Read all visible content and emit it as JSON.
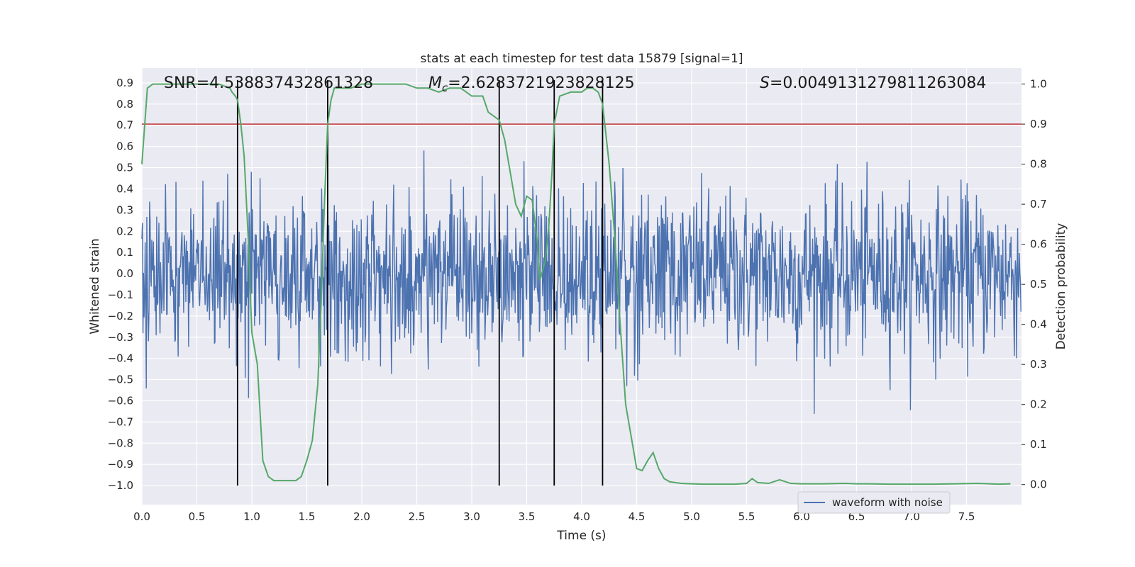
{
  "chart_data": {
    "type": "line",
    "title": "stats at each timestep for test data 15879 [signal=1]",
    "xlabel": "Time (s)",
    "ylabel_left": "Whitened strain",
    "ylabel_right": "Detection probability",
    "xlim": [
      0.0,
      8.0
    ],
    "ylim_left": [
      -1.09,
      0.97
    ],
    "ylim_right": [
      -0.05,
      1.04
    ],
    "x_ticks": [
      "0.0",
      "0.5",
      "1.0",
      "1.5",
      "2.0",
      "2.5",
      "3.0",
      "3.5",
      "4.0",
      "4.5",
      "5.0",
      "5.5",
      "6.0",
      "6.5",
      "7.0",
      "7.5"
    ],
    "y_left_ticks": [
      "0.9",
      "0.8",
      "0.7",
      "0.6",
      "0.5",
      "0.4",
      "0.3",
      "0.2",
      "0.1",
      "0.0",
      "−0.1",
      "−0.2",
      "−0.3",
      "−0.4",
      "−0.5",
      "−0.6",
      "−0.7",
      "−0.8",
      "−0.9",
      "−1.0"
    ],
    "y_right_ticks": [
      "1.0",
      "0.9",
      "0.8",
      "0.7",
      "0.6",
      "0.5",
      "0.4",
      "0.3",
      "0.2",
      "0.1",
      "0.0"
    ],
    "annotations": {
      "snr": "SNR=4.538837432861328",
      "mc_symbol": "M",
      "mc_sub": "c",
      "mc_value": "=2.6283721923828125",
      "s_symbol": "S",
      "s_value": "=0.004913127981126308​4"
    },
    "threshold_line": {
      "axis": "right",
      "value": 0.9,
      "color": "#c44e52"
    },
    "vertical_lines": [
      0.87,
      1.69,
      3.25,
      3.75,
      4.19
    ],
    "legend": {
      "label": "waveform with noise",
      "location": "lower right"
    },
    "series": [
      {
        "name": "waveform with noise",
        "axis": "left",
        "color": "#4c72b0",
        "noise_std": 0.19,
        "sample_count": 1600
      },
      {
        "name": "detection probability",
        "axis": "right",
        "color": "#55a868",
        "x": [
          0.0,
          0.05,
          0.1,
          0.15,
          0.2,
          0.3,
          0.4,
          0.5,
          0.6,
          0.7,
          0.8,
          0.82,
          0.85,
          0.87,
          0.9,
          0.93,
          0.97,
          1.0,
          1.05,
          1.1,
          1.15,
          1.2,
          1.25,
          1.3,
          1.35,
          1.4,
          1.45,
          1.5,
          1.55,
          1.6,
          1.63,
          1.66,
          1.69,
          1.72,
          1.75,
          1.8,
          1.9,
          2.0,
          2.2,
          2.4,
          2.5,
          2.6,
          2.7,
          2.8,
          2.85,
          2.9,
          3.0,
          3.1,
          3.15,
          3.2,
          3.25,
          3.3,
          3.35,
          3.4,
          3.45,
          3.5,
          3.55,
          3.6,
          3.62,
          3.67,
          3.7,
          3.73,
          3.75,
          3.8,
          3.9,
          4.0,
          4.05,
          4.1,
          4.15,
          4.19,
          4.25,
          4.3,
          4.35,
          4.4,
          4.45,
          4.5,
          4.55,
          4.6,
          4.65,
          4.7,
          4.75,
          4.8,
          4.9,
          5.0,
          5.1,
          5.2,
          5.3,
          5.4,
          5.5,
          5.55,
          5.6,
          5.7,
          5.8,
          5.9,
          6.0,
          6.2,
          6.4,
          6.5,
          6.6,
          6.8,
          7.0,
          7.2,
          7.4,
          7.6,
          7.8,
          7.9
        ],
        "y": [
          0.8,
          0.99,
          1.0,
          1.0,
          1.0,
          1.0,
          1.0,
          1.0,
          1.0,
          1.0,
          0.99,
          0.98,
          0.97,
          0.96,
          0.9,
          0.82,
          0.6,
          0.38,
          0.3,
          0.06,
          0.02,
          0.01,
          0.01,
          0.01,
          0.01,
          0.01,
          0.02,
          0.06,
          0.11,
          0.25,
          0.45,
          0.7,
          0.9,
          0.96,
          0.99,
          0.99,
          0.99,
          1.0,
          1.0,
          1.0,
          0.99,
          0.99,
          0.98,
          0.99,
          0.99,
          0.99,
          0.97,
          0.97,
          0.93,
          0.92,
          0.91,
          0.86,
          0.78,
          0.7,
          0.67,
          0.72,
          0.71,
          0.6,
          0.51,
          0.56,
          0.64,
          0.78,
          0.9,
          0.97,
          0.98,
          0.98,
          0.99,
          0.99,
          0.98,
          0.95,
          0.8,
          0.62,
          0.4,
          0.2,
          0.12,
          0.04,
          0.035,
          0.06,
          0.08,
          0.04,
          0.015,
          0.007,
          0.003,
          0.002,
          0.001,
          0.001,
          0.001,
          0.001,
          0.003,
          0.015,
          0.005,
          0.003,
          0.012,
          0.003,
          0.002,
          0.002,
          0.003,
          0.002,
          0.002,
          0.001,
          0.001,
          0.001,
          0.002,
          0.003,
          0.001,
          0.002
        ]
      }
    ]
  }
}
